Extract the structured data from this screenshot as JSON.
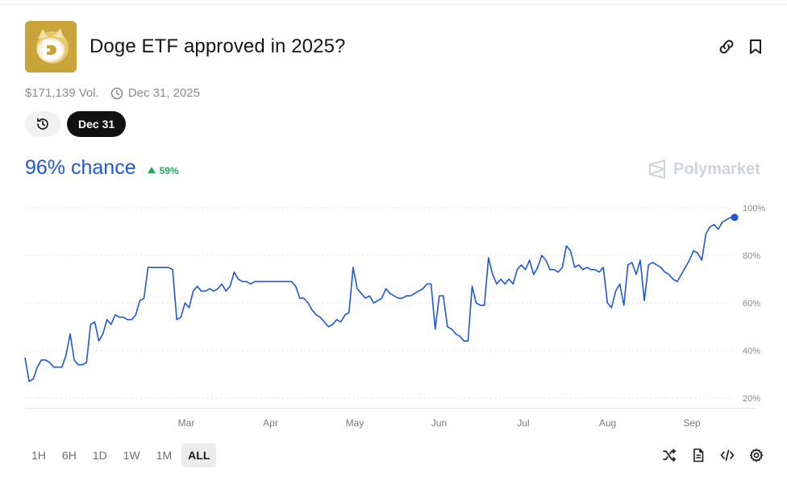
{
  "market": {
    "title": "Doge ETF approved in 2025?",
    "volume": "$171,139 Vol.",
    "end_date": "Dec 31, 2025",
    "selected_date": "Dec 31",
    "chance": "96% chance",
    "delta": "59%",
    "brand": "Polymarket"
  },
  "icons": {
    "link": "link-icon",
    "bookmark": "bookmark-icon",
    "clock": "clock-icon",
    "history": "history-icon",
    "shuffle": "shuffle-icon",
    "document": "document-icon",
    "embed": "embed-code-icon",
    "settings": "gear-icon"
  },
  "colors": {
    "line": "#1f57d6",
    "positive": "#27a35a",
    "logo_bg": "#c9a43a"
  },
  "timeframes": [
    "1H",
    "6H",
    "1D",
    "1W",
    "1M",
    "ALL"
  ],
  "active_timeframe": "ALL",
  "chart_data": {
    "type": "line",
    "y_unit": "%",
    "ylim": [
      20,
      100
    ],
    "yticks": [
      100,
      80,
      60,
      40,
      20
    ],
    "ytick_labels": [
      "100%",
      "80%",
      "60%",
      "40%",
      "20%"
    ],
    "xticks": [
      "Mar",
      "Apr",
      "May",
      "Jun",
      "Jul",
      "Aug",
      "Sep"
    ],
    "grid": true,
    "series": [
      {
        "values": [
          37,
          27,
          28,
          33,
          36,
          36,
          35,
          33,
          33,
          33,
          38,
          47,
          36,
          34,
          34,
          35,
          51,
          52,
          44,
          47,
          53,
          51,
          55,
          54,
          54,
          53,
          53,
          55,
          61,
          62,
          75,
          75,
          75,
          75,
          75,
          75,
          74,
          53,
          54,
          60,
          58,
          65,
          67,
          65,
          65,
          66,
          65,
          66,
          68,
          65,
          67,
          73,
          70,
          69,
          69,
          68,
          69,
          69,
          69,
          69,
          69,
          69,
          69,
          69,
          69,
          69,
          67,
          62,
          62,
          60,
          57,
          55,
          54,
          52,
          50,
          51,
          53,
          52,
          55,
          56,
          75,
          66,
          64,
          62,
          63,
          60,
          61,
          62,
          66,
          64,
          63,
          62,
          62,
          63,
          63,
          64,
          65,
          66,
          68,
          68,
          49,
          63,
          63,
          50,
          49,
          47,
          46,
          44,
          44,
          67,
          60,
          59,
          59,
          79,
          72,
          68,
          70,
          68,
          70,
          68,
          74,
          76,
          74,
          78,
          72,
          75,
          80,
          78,
          74,
          74,
          73,
          75,
          84,
          82,
          75,
          76,
          74,
          75,
          74,
          74,
          73,
          75,
          60,
          58,
          65,
          68,
          59,
          76,
          77,
          72,
          78,
          61,
          76,
          77,
          76,
          75,
          73,
          72,
          70,
          69,
          72,
          75,
          78,
          82,
          81,
          78,
          89,
          92,
          93,
          91,
          94,
          95,
          96,
          96
        ]
      }
    ]
  }
}
